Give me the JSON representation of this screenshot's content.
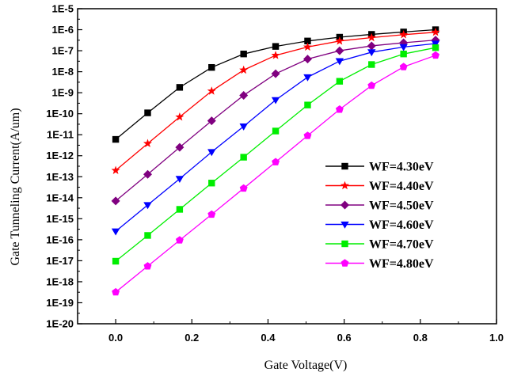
{
  "chart_data": {
    "type": "line",
    "title": "",
    "xlabel": "Gate Voltage(V)",
    "ylabel": "Gate Tunneling Current(A/um)",
    "xlim": [
      -0.1,
      1.0
    ],
    "ylim": [
      1e-20,
      1e-05
    ],
    "yscale": "log",
    "grid": false,
    "legend_position": "right",
    "x_ticks": [
      "0.0",
      "0.2",
      "0.4",
      "0.6",
      "0.8",
      "1.0"
    ],
    "y_ticks": [
      "1E-20",
      "1E-19",
      "1E-18",
      "1E-17",
      "1E-16",
      "1E-15",
      "1E-14",
      "1E-13",
      "1E-12",
      "1E-11",
      "1E-10",
      "1E-9",
      "1E-8",
      "1E-7",
      "1E-6",
      "1E-5"
    ],
    "x": [
      0.0,
      0.084,
      0.168,
      0.252,
      0.336,
      0.42,
      0.504,
      0.588,
      0.672,
      0.756,
      0.84
    ],
    "series": [
      {
        "name": "WF=4.30eV",
        "color": "#000000",
        "marker": "square",
        "values": [
          6e-12,
          1.1e-10,
          1.8e-09,
          1.6e-08,
          7e-08,
          1.6e-07,
          2.9e-07,
          4.4e-07,
          6e-07,
          7.8e-07,
          1e-06
        ]
      },
      {
        "name": "WF=4.40eV",
        "color": "#ff0000",
        "marker": "star",
        "values": [
          2e-13,
          3.8e-12,
          7e-11,
          1.2e-09,
          1.2e-08,
          6e-08,
          1.5e-07,
          2.9e-07,
          4.2e-07,
          5.8e-07,
          7.6e-07
        ]
      },
      {
        "name": "WF=4.50eV",
        "color": "#800080",
        "marker": "diamond",
        "values": [
          7e-15,
          1.3e-13,
          2.5e-12,
          4.6e-11,
          7.5e-10,
          8e-09,
          4e-08,
          1e-07,
          1.7e-07,
          2.4e-07,
          3.2e-07
        ]
      },
      {
        "name": "WF=4.60eV",
        "color": "#0000ff",
        "marker": "triangle-down",
        "values": [
          2.5e-16,
          4.5e-15,
          8e-14,
          1.5e-12,
          2.5e-11,
          4.5e-10,
          5.5e-09,
          3.2e-08,
          8.5e-08,
          1.5e-07,
          2.2e-07
        ]
      },
      {
        "name": "WF=4.70eV",
        "color": "#00ee00",
        "marker": "square",
        "values": [
          9.5e-18,
          1.6e-16,
          2.8e-15,
          5e-14,
          8.5e-13,
          1.5e-11,
          2.6e-10,
          3.5e-09,
          2.2e-08,
          7e-08,
          1.4e-07
        ]
      },
      {
        "name": "WF=4.80eV",
        "color": "#ff00ff",
        "marker": "pentagon",
        "values": [
          3.2e-19,
          5.5e-18,
          9.5e-17,
          1.6e-15,
          2.8e-14,
          5e-13,
          9e-12,
          1.6e-10,
          2.2e-09,
          1.7e-08,
          6e-08
        ]
      }
    ]
  }
}
